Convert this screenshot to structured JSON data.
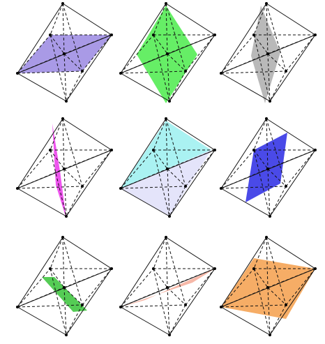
{
  "panels": [
    {
      "name": "panel-1",
      "fill": "#a99ae6"
    },
    {
      "name": "panel-2",
      "fill": "#66ee66"
    },
    {
      "name": "panel-3",
      "fill": "#b9b9b9"
    },
    {
      "name": "panel-4",
      "fill": "#ee55ee"
    },
    {
      "name": "panel-5",
      "fill": "#aaf2f2",
      "fill2": "#e4e4fa"
    },
    {
      "name": "panel-6",
      "fill": "#4a4ae8"
    },
    {
      "name": "panel-7",
      "fill": "#55cc55"
    },
    {
      "name": "panel-8",
      "fill": "#f6b8a8"
    },
    {
      "name": "panel-9",
      "fill": "#f6ad66"
    }
  ]
}
